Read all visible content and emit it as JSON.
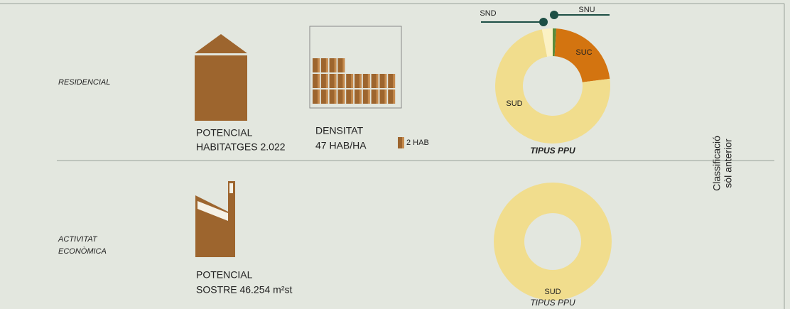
{
  "residencial_label": "RESIDENCIAL",
  "activitat_label": [
    "ACTIVITAT",
    "ECONÒMICA"
  ],
  "potencial_habitatges": [
    "POTENCIAL",
    "HABITATGES 2.022"
  ],
  "densitat": [
    "DENSITAT",
    "47 HAB/HA"
  ],
  "brick_legend": "2 HAB",
  "potencial_sostre": [
    "POTENCIAL",
    "SOSTRE 46.254 m²st"
  ],
  "side_label": [
    "Classificació",
    "sòl anterior"
  ],
  "chart_data": [
    {
      "type": "donut",
      "title": "TIPUS PPU",
      "categories": [
        "SNU",
        "SUC",
        "SUD",
        "SND"
      ],
      "values": [
        1,
        22,
        74,
        3
      ],
      "colors": [
        "#5b8c3c",
        "#d37410",
        "#f1dd8d",
        "#fbf1c4"
      ]
    },
    {
      "type": "donut",
      "title": "TIPUS PPU",
      "categories": [
        "SUD"
      ],
      "values": [
        100
      ],
      "colors": [
        "#f1dd8d"
      ]
    }
  ]
}
